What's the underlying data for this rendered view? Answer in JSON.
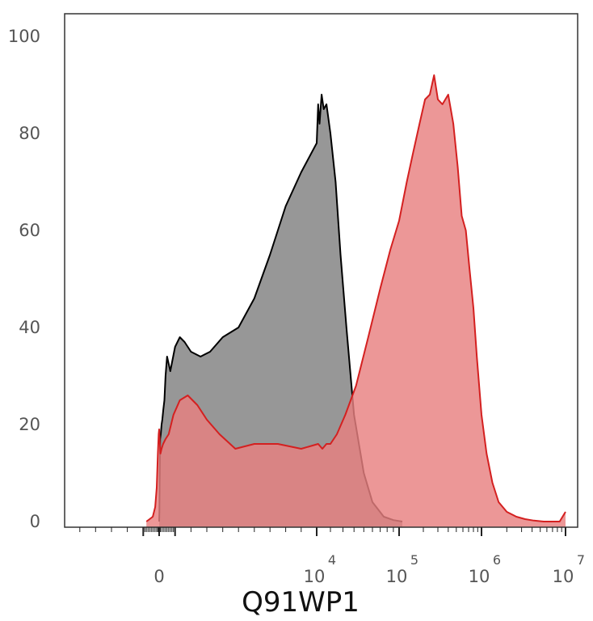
{
  "chart_data": {
    "type": "area",
    "title": "",
    "xlabel": "Q91WP1",
    "ylabel": "",
    "x_scale": "biexponential",
    "ylim": [
      0,
      105
    ],
    "yticks": [
      0,
      20,
      40,
      60,
      80,
      100
    ],
    "xticks": [
      {
        "base": "0",
        "exp": ""
      },
      {
        "base": "10",
        "exp": "4"
      },
      {
        "base": "10",
        "exp": "5"
      },
      {
        "base": "10",
        "exp": "6"
      },
      {
        "base": "10",
        "exp": "7"
      }
    ],
    "grid": false,
    "legend": "none",
    "series": [
      {
        "color": "#000000",
        "fill": "#808080",
        "x": [
          0,
          15,
          30,
          60,
          100,
          150,
          200,
          260,
          330,
          400,
          500,
          700,
          1000,
          1300,
          1600,
          2000,
          2600,
          3200,
          4000,
          5000,
          6000,
          7000,
          8000,
          9000,
          10000,
          11000,
          12000,
          13500,
          15000,
          17000,
          20000,
          24000,
          28000,
          33000,
          40000,
          50000,
          60000,
          75000,
          90000,
          110000
        ],
        "values": [
          0,
          2,
          8,
          17,
          18,
          20,
          21,
          23,
          25,
          30,
          34,
          31,
          36,
          38,
          37,
          35,
          34,
          35,
          38,
          40,
          46,
          55,
          65,
          72,
          78,
          86,
          82,
          88,
          85,
          86,
          80,
          70,
          55,
          40,
          22,
          10,
          4,
          1,
          0.3,
          0
        ]
      },
      {
        "color": "#d42020",
        "fill": "#e88080",
        "x": [
          -800,
          -600,
          -400,
          -250,
          -150,
          -80,
          -30,
          0,
          30,
          80,
          150,
          250,
          400,
          600,
          900,
          1300,
          1800,
          2400,
          3000,
          3800,
          4800,
          6000,
          7500,
          9000,
          11000,
          14000,
          17000,
          20000,
          25000,
          32000,
          42000,
          55000,
          70000,
          85000,
          100000,
          125000,
          150000,
          180000,
          210000,
          240000,
          270000,
          300000,
          340000,
          400000,
          460000,
          520000,
          580000,
          650000,
          720000,
          800000,
          880000,
          1000000,
          1150000,
          1350000,
          1600000,
          2000000,
          2600000,
          3300000,
          4200000,
          5500000,
          7000000,
          8500000,
          10000000
        ],
        "values": [
          0,
          0.5,
          1,
          3,
          7,
          14,
          18,
          19,
          17,
          14,
          15,
          16,
          17,
          18,
          22,
          25,
          26,
          24,
          21,
          18,
          15,
          16,
          16,
          15,
          16,
          15,
          16,
          16,
          18,
          22,
          28,
          38,
          48,
          56,
          62,
          70,
          76,
          82,
          87,
          88,
          92,
          87,
          86,
          88,
          82,
          73,
          63,
          60,
          52,
          44,
          34,
          22,
          14,
          8,
          4,
          2,
          1,
          0.5,
          0.2,
          0,
          0,
          0,
          2
        ]
      }
    ]
  }
}
